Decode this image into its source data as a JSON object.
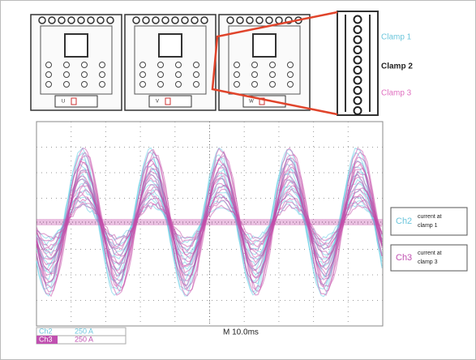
{
  "modules": [
    {
      "label": "U"
    },
    {
      "label": "V"
    },
    {
      "label": "W"
    }
  ],
  "clamps": [
    "Clamp 1",
    "Clamp 2",
    "Clamp 3"
  ],
  "legend": [
    {
      "channel": "Ch2",
      "lines": [
        "current at",
        "clamp 1"
      ]
    },
    {
      "channel": "Ch3",
      "lines": [
        "current at",
        "clamp 3"
      ]
    }
  ],
  "scales": [
    {
      "channel": "Ch2",
      "value": "250 A"
    },
    {
      "channel": "Ch3",
      "value": "250 A"
    }
  ],
  "timebase": "M 10.0ms"
}
